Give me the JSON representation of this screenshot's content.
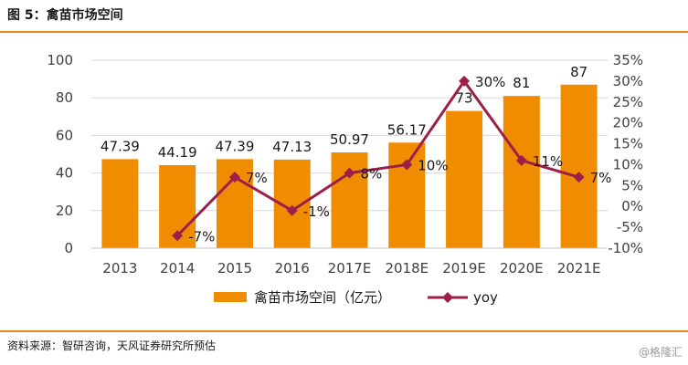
{
  "figure": {
    "title": "图 5：禽苗市场空间",
    "source": "资料来源：智研咨询，天风证券研究所预估",
    "watermark": "@格隆汇"
  },
  "colors": {
    "bar": "#f08c00",
    "line": "#9c1f4a",
    "rule": "#e8891c"
  },
  "chart_data": {
    "type": "bar",
    "categories": [
      "2013",
      "2014",
      "2015",
      "2016",
      "2017E",
      "2018E",
      "2019E",
      "2020E",
      "2021E"
    ],
    "series": [
      {
        "name": "禽苗市场空间（亿元）",
        "type": "bar",
        "axis": "left",
        "values": [
          47.39,
          44.19,
          47.39,
          47.13,
          50.97,
          56.17,
          73,
          81,
          87
        ],
        "labels": [
          "47.39",
          "44.19",
          "47.39",
          "47.13",
          "50.97",
          "56.17",
          "73",
          "81",
          "87"
        ]
      },
      {
        "name": "yoy",
        "type": "line",
        "axis": "right",
        "values": [
          null,
          -7,
          7,
          -1,
          8,
          10,
          30,
          11,
          7
        ],
        "labels": [
          "",
          "-7%",
          "7%",
          "-1%",
          "8%",
          "10%",
          "30%",
          "11%",
          "7%"
        ]
      }
    ],
    "y_left": {
      "ylim": [
        0,
        100
      ],
      "ticks": [
        "0",
        "20",
        "40",
        "60",
        "80",
        "100"
      ]
    },
    "y_right": {
      "ylim": [
        -10,
        35
      ],
      "ticks": [
        "-10%",
        "-5%",
        "0%",
        "5%",
        "10%",
        "15%",
        "20%",
        "25%",
        "30%",
        "35%"
      ]
    },
    "grid": true,
    "legend": "bottom"
  }
}
